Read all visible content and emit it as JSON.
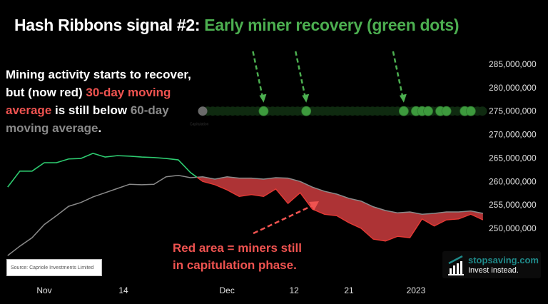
{
  "title": {
    "prefix": "Hash Ribbons signal #2: ",
    "highlight": "Early miner recovery (green dots)"
  },
  "note": {
    "part1": "Mining activity starts to recover, but (now red) ",
    "part2": "30-day moving average",
    "part3": " is still below ",
    "part4": "60-day moving average",
    "part5": "."
  },
  "red_annotation": {
    "line1": "Red area = miners still",
    "line2": "in capitulation phase."
  },
  "source": "Source: Capriole Investments Limited",
  "logo": {
    "name": "stopsaving.com",
    "tagline": "Invest instead."
  },
  "colors": {
    "fast_above": "#2ecc71",
    "fast_below": "#e53935",
    "area": "#c0393b",
    "slow": "#8a8a8a",
    "signal_dot": "#3d9a3d",
    "dot_track": "#0f2a10",
    "capitulation_dot": "#6a6a6a"
  },
  "chart_data": {
    "type": "line",
    "title": "",
    "xlabel": "",
    "ylabel": "",
    "ylim": [
      244000000,
      289000000
    ],
    "xlim": [
      "2022-10-26",
      "2023-01-12"
    ],
    "y_ticks": [
      250000000,
      255000000,
      260000000,
      265000000,
      270000000,
      275000000,
      280000000,
      285000000
    ],
    "y_tick_labels": [
      "250,000,000",
      "255,000,000",
      "260,000,000",
      "265,000,000",
      "270,000,000",
      "275,000,000",
      "280,000,000",
      "285,000,000"
    ],
    "x_ticks": [
      "2022-11-01",
      "2022-11-14",
      "2022-12-01",
      "2022-12-12",
      "2022-12-21",
      "2023-01-01"
    ],
    "x_tick_labels": [
      "Nov",
      "14",
      "Dec",
      "12",
      "21",
      "2023"
    ],
    "grid": false,
    "dates": [
      "2022-10-26",
      "2022-10-28",
      "2022-10-30",
      "2022-11-01",
      "2022-11-03",
      "2022-11-05",
      "2022-11-07",
      "2022-11-09",
      "2022-11-11",
      "2022-11-13",
      "2022-11-15",
      "2022-11-17",
      "2022-11-19",
      "2022-11-21",
      "2022-11-23",
      "2022-11-25",
      "2022-11-27",
      "2022-11-29",
      "2022-12-01",
      "2022-12-03",
      "2022-12-05",
      "2022-12-07",
      "2022-12-09",
      "2022-12-11",
      "2022-12-13",
      "2022-12-15",
      "2022-12-17",
      "2022-12-19",
      "2022-12-21",
      "2022-12-23",
      "2022-12-25",
      "2022-12-27",
      "2022-12-29",
      "2022-12-31",
      "2023-01-02",
      "2023-01-04",
      "2023-01-06",
      "2023-01-08",
      "2023-01-10",
      "2023-01-12"
    ],
    "series": [
      {
        "values": [
          258.8,
          262.2,
          262.2,
          264.0,
          264.0,
          264.8,
          264.9,
          266.0,
          265.2,
          265.5,
          265.4,
          265.2,
          265.1,
          264.9,
          264.6,
          261.9,
          260.0,
          259.3,
          258.2,
          256.8,
          257.2,
          256.8,
          258.4,
          255.3,
          257.6,
          254.1,
          253.0,
          252.7,
          251.2,
          250.0,
          247.7,
          247.3,
          248.3,
          248.0,
          252.0,
          250.5,
          251.8,
          252.0,
          253.0,
          251.8
        ],
        "unit": "millions"
      },
      {
        "values": [
          244.2,
          246.2,
          248.0,
          250.8,
          252.7,
          254.7,
          255.5,
          256.7,
          257.6,
          258.5,
          259.4,
          259.3,
          259.4,
          261.0,
          261.3,
          260.8,
          261.0,
          260.5,
          261.0,
          260.7,
          260.7,
          260.5,
          260.8,
          260.7,
          260.0,
          258.8,
          257.9,
          257.3,
          256.4,
          255.8,
          254.6,
          253.8,
          253.3,
          253.5,
          253.0,
          253.2,
          253.5,
          253.5,
          253.7,
          253.2
        ],
        "unit": "millions"
      }
    ],
    "signals": {
      "level": 275000000,
      "capitulation_label": "Capitulation",
      "capitulation_start": "2022-11-27",
      "recovery_dots": [
        "2022-12-07",
        "2022-12-14",
        "2022-12-30",
        "2023-01-01",
        "2023-01-02",
        "2023-01-03",
        "2023-01-05",
        "2023-01-06",
        "2023-01-09",
        "2023-01-10"
      ],
      "arrowed": [
        "2022-12-07",
        "2022-12-14",
        "2022-12-30"
      ]
    }
  }
}
